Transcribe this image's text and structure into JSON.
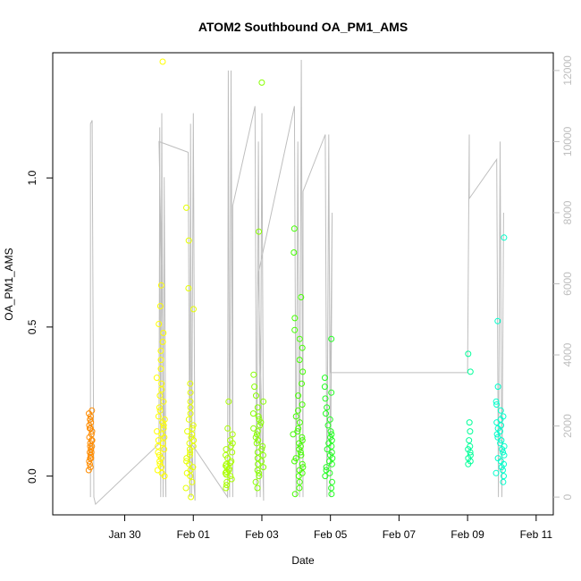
{
  "chart_data": {
    "type": "scatter",
    "title": "ATOM2 Southbound OA_PM1_AMS",
    "xlabel": "Date",
    "ylabel": "OA_PM1_AMS",
    "xlim": [
      -2.1,
      12.5
    ],
    "ylim": [
      -0.13,
      1.42
    ],
    "y2lim": [
      -500,
      12500
    ],
    "x_tick_values": [
      0,
      2,
      4,
      6,
      8,
      10,
      12
    ],
    "x_tick_labels": [
      "Jan 30",
      "Feb 01",
      "Feb 03",
      "Feb 05",
      "Feb 07",
      "Feb 09",
      "Feb 11"
    ],
    "y_tick_values": [
      0.0,
      0.5,
      1.0
    ],
    "y_tick_labels": [
      "0.0",
      "0.5",
      "1.0"
    ],
    "y2_tick_values": [
      0,
      2000,
      4000,
      6000,
      8000,
      10000,
      12000
    ],
    "y2_tick_labels": [
      "0",
      "2000",
      "4000",
      "6000",
      "8000",
      "10000",
      "12000"
    ],
    "point_clusters": [
      {
        "x_center": -1.0,
        "x_spread": 0.05,
        "values": [
          0.22,
          0.21,
          0.2,
          0.19,
          0.19,
          0.18,
          0.17,
          0.16,
          0.16,
          0.15,
          0.14,
          0.13,
          0.12,
          0.12,
          0.11,
          0.1,
          0.1,
          0.09,
          0.08,
          0.08,
          0.07,
          0.06,
          0.06,
          0.05,
          0.04,
          0.03,
          0.02
        ],
        "color": "#ff8c00"
      },
      {
        "x_center": 1.05,
        "x_spread": 0.12,
        "values": [
          1.39,
          0.64,
          0.57,
          0.51,
          0.48,
          0.45,
          0.42,
          0.39,
          0.36,
          0.33,
          0.31,
          0.29,
          0.27,
          0.25,
          0.23,
          0.22,
          0.2,
          0.19,
          0.18,
          0.17,
          0.16,
          0.15,
          0.14,
          0.13,
          0.12,
          0.11,
          0.1,
          0.09,
          0.08,
          0.07,
          0.06,
          0.05,
          0.04,
          0.03,
          0.02,
          0.01,
          0.0
        ],
        "color": "#ffff00"
      },
      {
        "x_center": 1.9,
        "x_spread": 0.12,
        "values": [
          0.9,
          0.79,
          0.63,
          0.56,
          0.31,
          0.28,
          0.25,
          0.23,
          0.21,
          0.19,
          0.17,
          0.16,
          0.15,
          0.14,
          0.13,
          0.12,
          0.11,
          0.1,
          0.09,
          0.08,
          0.07,
          0.06,
          0.05,
          0.04,
          0.03,
          0.02,
          0.01,
          0.0,
          -0.02,
          -0.04,
          -0.07
        ],
        "color": "#e6ff00"
      },
      {
        "x_center": 3.05,
        "x_spread": 0.12,
        "values": [
          0.25,
          0.16,
          0.14,
          0.12,
          0.11,
          0.1,
          0.09,
          0.08,
          0.07,
          0.06,
          0.05,
          0.045,
          0.04,
          0.035,
          0.03,
          0.025,
          0.02,
          0.015,
          0.01,
          0.005,
          0.0,
          -0.01,
          -0.02,
          -0.03,
          -0.04
        ],
        "color": "#aaff00"
      },
      {
        "x_center": 3.9,
        "x_spread": 0.15,
        "values": [
          1.32,
          0.82,
          0.34,
          0.3,
          0.27,
          0.25,
          0.23,
          0.21,
          0.2,
          0.19,
          0.18,
          0.17,
          0.16,
          0.15,
          0.14,
          0.13,
          0.12,
          0.11,
          0.1,
          0.09,
          0.08,
          0.07,
          0.06,
          0.05,
          0.04,
          0.03,
          0.02,
          0.01,
          0.0,
          -0.02,
          -0.04
        ],
        "color": "#88ff00"
      },
      {
        "x_center": 5.05,
        "x_spread": 0.15,
        "values": [
          0.83,
          0.75,
          0.6,
          0.53,
          0.49,
          0.46,
          0.43,
          0.39,
          0.35,
          0.31,
          0.27,
          0.24,
          0.22,
          0.2,
          0.18,
          0.16,
          0.15,
          0.14,
          0.13,
          0.12,
          0.11,
          0.1,
          0.09,
          0.08,
          0.07,
          0.06,
          0.05,
          0.04,
          0.03,
          0.02,
          0.01,
          0.0,
          -0.02,
          -0.04,
          -0.06
        ],
        "color": "#44ff00"
      },
      {
        "x_center": 5.95,
        "x_spread": 0.12,
        "values": [
          0.46,
          0.33,
          0.3,
          0.28,
          0.26,
          0.23,
          0.21,
          0.19,
          0.17,
          0.15,
          0.14,
          0.13,
          0.12,
          0.11,
          0.1,
          0.09,
          0.08,
          0.07,
          0.06,
          0.05,
          0.04,
          0.03,
          0.02,
          0.01,
          0.0,
          -0.02,
          -0.04,
          -0.06
        ],
        "color": "#22ff22"
      },
      {
        "x_center": 10.05,
        "x_spread": 0.04,
        "values": [
          0.41,
          0.35,
          0.18,
          0.15,
          0.12,
          0.1,
          0.09,
          0.08,
          0.07,
          0.06,
          0.05,
          0.04
        ],
        "color": "#00ff99"
      },
      {
        "x_center": 10.95,
        "x_spread": 0.12,
        "values": [
          0.8,
          0.52,
          0.3,
          0.25,
          0.24,
          0.22,
          0.2,
          0.19,
          0.18,
          0.17,
          0.16,
          0.15,
          0.14,
          0.13,
          0.12,
          0.11,
          0.1,
          0.09,
          0.08,
          0.07,
          0.06,
          0.05,
          0.04,
          0.03,
          0.02,
          0.01,
          0.0,
          -0.02
        ],
        "color": "#00ffcc"
      }
    ],
    "secondary_series": {
      "name": "gray line (right axis)",
      "color": "#bebebe",
      "points": [
        [
          -1.0,
          0
        ],
        [
          -1.0,
          10500
        ],
        [
          -0.95,
          10600
        ],
        [
          -0.9,
          0
        ],
        [
          -0.85,
          -200
        ],
        [
          1.0,
          1500
        ],
        [
          1.02,
          10400
        ],
        [
          1.05,
          0
        ],
        [
          1.08,
          10800
        ],
        [
          1.12,
          0
        ],
        [
          1.15,
          9000
        ],
        [
          1.2,
          0
        ],
        [
          1.0,
          10000
        ],
        [
          1.85,
          9700
        ],
        [
          1.9,
          0
        ],
        [
          1.92,
          10500
        ],
        [
          1.95,
          0
        ],
        [
          2.0,
          10800
        ],
        [
          2.05,
          -100
        ],
        [
          1.95,
          1500
        ],
        [
          3.0,
          0
        ],
        [
          3.02,
          12000
        ],
        [
          3.06,
          0
        ],
        [
          3.1,
          12000
        ],
        [
          3.15,
          0
        ],
        [
          3.15,
          8200
        ],
        [
          3.8,
          11000
        ],
        [
          3.85,
          0
        ],
        [
          3.9,
          10000
        ],
        [
          3.95,
          0
        ],
        [
          4.0,
          10800
        ],
        [
          4.05,
          -100
        ],
        [
          3.9,
          6300
        ],
        [
          4.95,
          11000
        ],
        [
          5.0,
          0
        ],
        [
          5.05,
          10000
        ],
        [
          5.1,
          0
        ],
        [
          5.15,
          12300
        ],
        [
          5.2,
          0
        ],
        [
          5.2,
          8600
        ],
        [
          5.85,
          10200
        ],
        [
          5.9,
          0
        ],
        [
          5.95,
          10200
        ],
        [
          6.0,
          0
        ],
        [
          6.05,
          8000
        ],
        [
          6.0,
          3500
        ],
        [
          10.0,
          3500
        ],
        [
          10.05,
          10200
        ],
        [
          10.05,
          8400
        ],
        [
          10.85,
          9500
        ],
        [
          10.9,
          0
        ],
        [
          10.95,
          10000
        ],
        [
          11.0,
          0
        ],
        [
          11.05,
          8000
        ]
      ]
    }
  }
}
